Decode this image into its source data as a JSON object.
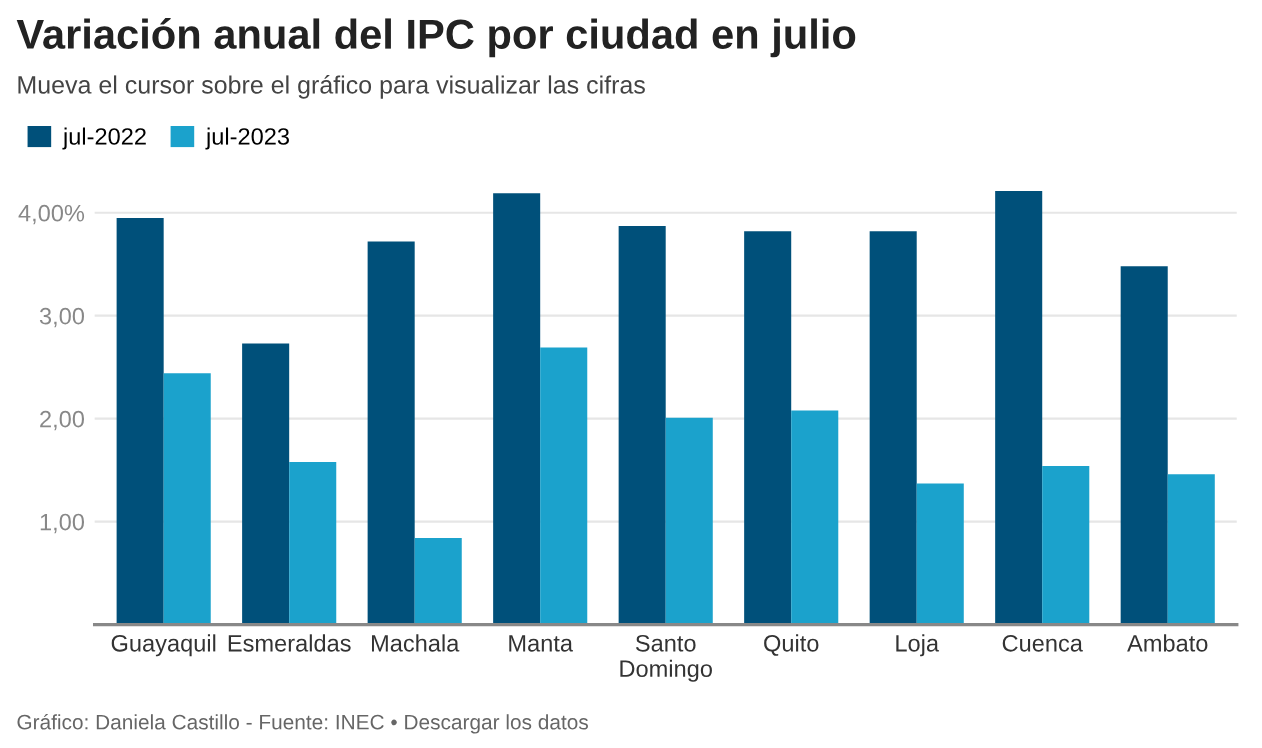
{
  "chart_data": {
    "type": "bar",
    "title": "Variación anual del IPC por ciudad en julio",
    "subtitle": "Mueva el cursor sobre el gráfico para visualizar las cifras",
    "categories": [
      "Guayaquil",
      "Esmeraldas",
      "Machala",
      "Manta",
      "Santo\nDomingo",
      "Quito",
      "Loja",
      "Cuenca",
      "Ambato"
    ],
    "series": [
      {
        "name": "jul-2022",
        "color": "#00507a",
        "values": [
          3.95,
          2.73,
          3.72,
          4.19,
          3.87,
          3.82,
          3.82,
          4.21,
          3.48
        ]
      },
      {
        "name": "jul-2023",
        "color": "#1ba2cc",
        "values": [
          2.44,
          1.58,
          0.84,
          2.69,
          2.01,
          2.08,
          1.37,
          1.54,
          1.46
        ]
      }
    ],
    "ylim": [
      0,
      4.25
    ],
    "yticks": [
      {
        "value": 1,
        "label": "1,00"
      },
      {
        "value": 2,
        "label": "2,00"
      },
      {
        "value": 3,
        "label": "3,00"
      },
      {
        "value": 4,
        "label": "4,00%"
      }
    ],
    "grid": "y",
    "legend": "top left",
    "annotations": [
      "Gráfico: Daniela Castillo - Fuente: INEC • Descargar los datos"
    ]
  }
}
